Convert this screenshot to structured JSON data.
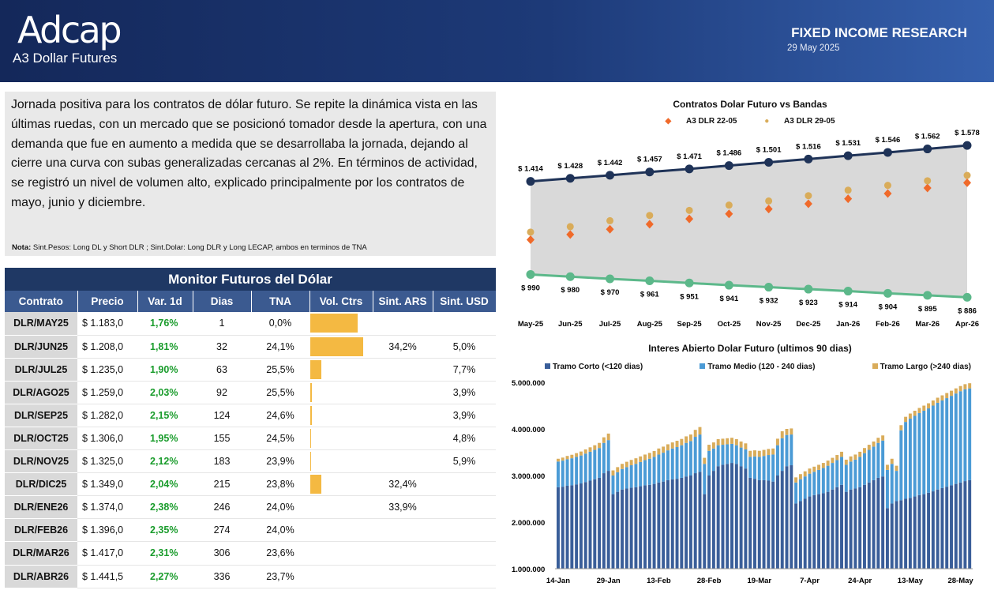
{
  "header": {
    "logo": "Adcap",
    "subtitle": "A3 Dollar Futures",
    "research": "FIXED INCOME RESEARCH",
    "date": "29 May 2025"
  },
  "summary": {
    "text": "Jornada positiva para los contratos de dólar futuro. Se repite la dinámica vista en las últimas ruedas, con un mercado que se posicionó tomador desde la apertura, con una demanda que fue en aumento a medida que se desarrollaba la jornada, dejando al cierre una curva con subas generalizadas cercanas al 2%. En términos de actividad, se registró un nivel de volumen alto, explicado principalmente por los contratos de mayo, junio y diciembre.",
    "nota_label": "Nota:",
    "nota_text": " Sint.Pesos: Long DL y Short DLR ; Sint.Dolar: Long DLR y Long LECAP, ambos en terminos de TNA"
  },
  "monitor": {
    "title": "Monitor Futuros del Dólar",
    "headers": [
      "Contrato",
      "Precio",
      "Var. 1d",
      "Dias",
      "TNA",
      "Vol. Ctrs",
      "Sint. ARS",
      "Sint. USD"
    ],
    "rows": [
      {
        "contrato": "DLR/MAY25",
        "precio": "$ 1.183,0",
        "var": "1,76%",
        "dias": "1",
        "tna": "0,0%",
        "vol": 0.84,
        "sars": "",
        "susd": ""
      },
      {
        "contrato": "DLR/JUN25",
        "precio": "$ 1.208,0",
        "var": "1,81%",
        "dias": "32",
        "tna": "24,1%",
        "vol": 0.93,
        "sars": "34,2%",
        "susd": "5,0%"
      },
      {
        "contrato": "DLR/JUL25",
        "precio": "$ 1.235,0",
        "var": "1,90%",
        "dias": "63",
        "tna": "25,5%",
        "vol": 0.19,
        "sars": "",
        "susd": "7,7%"
      },
      {
        "contrato": "DLR/AGO25",
        "precio": "$ 1.259,0",
        "var": "2,03%",
        "dias": "92",
        "tna": "25,5%",
        "vol": 0.03,
        "sars": "",
        "susd": "3,9%"
      },
      {
        "contrato": "DLR/SEP25",
        "precio": "$ 1.282,0",
        "var": "2,15%",
        "dias": "124",
        "tna": "24,6%",
        "vol": 0.03,
        "sars": "",
        "susd": "3,9%"
      },
      {
        "contrato": "DLR/OCT25",
        "precio": "$ 1.306,0",
        "var": "1,95%",
        "dias": "155",
        "tna": "24,5%",
        "vol": 0.01,
        "sars": "",
        "susd": "4,8%"
      },
      {
        "contrato": "DLR/NOV25",
        "precio": "$ 1.325,0",
        "var": "2,12%",
        "dias": "183",
        "tna": "23,9%",
        "vol": 0.01,
        "sars": "",
        "susd": "5,9%"
      },
      {
        "contrato": "DLR/DIC25",
        "precio": "$ 1.349,0",
        "var": "2,04%",
        "dias": "215",
        "tna": "23,8%",
        "vol": 0.19,
        "sars": "32,4%",
        "susd": ""
      },
      {
        "contrato": "DLR/ENE26",
        "precio": "$ 1.374,0",
        "var": "2,38%",
        "dias": "246",
        "tna": "24,0%",
        "vol": 0,
        "sars": "33,9%",
        "susd": ""
      },
      {
        "contrato": "DLR/FEB26",
        "precio": "$ 1.396,0",
        "var": "2,35%",
        "dias": "274",
        "tna": "24,0%",
        "vol": 0,
        "sars": "",
        "susd": ""
      },
      {
        "contrato": "DLR/MAR26",
        "precio": "$ 1.417,0",
        "var": "2,31%",
        "dias": "306",
        "tna": "23,6%",
        "vol": 0,
        "sars": "",
        "susd": ""
      },
      {
        "contrato": "DLR/ABR26",
        "precio": "$ 1.441,5",
        "var": "2,27%",
        "dias": "336",
        "tna": "23,7%",
        "vol": 0,
        "sars": "",
        "susd": ""
      }
    ]
  },
  "colors": {
    "upper_band": "#1f3358",
    "lower_band": "#5cb88a",
    "band_fill": "#d9d9d9",
    "series_orange": "#f06a2a",
    "series_gold": "#d9ac5a",
    "corto": "#3a5e99",
    "medio": "#4b9bd6",
    "largo": "#d9ac5a",
    "vol_bar": "#f4b942"
  },
  "chart_data": [
    {
      "type": "line",
      "title": "Contratos Dolar Futuro vs Bandas",
      "categories": [
        "May-25",
        "Jun-25",
        "Jul-25",
        "Aug-25",
        "Sep-25",
        "Oct-25",
        "Nov-25",
        "Dec-25",
        "Jan-26",
        "Feb-26",
        "Mar-26",
        "Apr-26"
      ],
      "band_upper": [
        1414,
        1428,
        1442,
        1457,
        1471,
        1486,
        1501,
        1516,
        1531,
        1546,
        1562,
        1578
      ],
      "band_upper_labels": [
        "$ 1.414",
        "$ 1.428",
        "$ 1.442",
        "$ 1.457",
        "$ 1.471",
        "$ 1.486",
        "$ 1.501",
        "$ 1.516",
        "$ 1.531",
        "$ 1.546",
        "$ 1.562",
        "$ 1.578"
      ],
      "band_lower": [
        990,
        980,
        970,
        961,
        951,
        941,
        932,
        923,
        914,
        904,
        895,
        886
      ],
      "band_lower_labels": [
        "$ 990",
        "$ 980",
        "$ 970",
        "$ 961",
        "$ 951",
        "$ 941",
        "$ 932",
        "$ 923",
        "$ 914",
        "$ 904",
        "$ 895",
        "$ 886"
      ],
      "series": [
        {
          "name": "A3 DLR 22-05",
          "values": [
            1148,
            1172,
            1196,
            1219,
            1243,
            1266,
            1288,
            1312,
            1335,
            1359,
            1384,
            1408
          ]
        },
        {
          "name": "A3 DLR 29-05",
          "values": [
            1183,
            1208,
            1235,
            1259,
            1282,
            1306,
            1325,
            1349,
            1374,
            1396,
            1417,
            1441.5
          ]
        }
      ],
      "ylim": [
        880,
        1600
      ],
      "legend": "top"
    },
    {
      "type": "bar",
      "stacked": true,
      "title": "Interes Abierto Dolar Futuro (ultimos 90 dias)",
      "series_names": [
        "Tramo Corto (<120 dias)",
        "Tramo Medio (120 - 240 dias)",
        "Tramo Largo (>240 dias)"
      ],
      "y_ticks": [
        "1.000.000",
        "2.000.000",
        "3.000.000",
        "4.000.000",
        "5.000.000"
      ],
      "ylim": [
        1000000,
        5000000
      ],
      "x_labels": [
        "14-Jan",
        "29-Jan",
        "13-Feb",
        "28-Feb",
        "19-Mar",
        "7-Apr",
        "24-Apr",
        "13-May",
        "28-May"
      ],
      "x_label_index": [
        0,
        11,
        22,
        33,
        44,
        55,
        66,
        77,
        88
      ],
      "corto": [
        2750000,
        2760000,
        2780000,
        2790000,
        2810000,
        2830000,
        2860000,
        2890000,
        2920000,
        2950000,
        3050000,
        3100000,
        2600000,
        2650000,
        2700000,
        2720000,
        2740000,
        2750000,
        2770000,
        2790000,
        2800000,
        2820000,
        2850000,
        2870000,
        2900000,
        2920000,
        2930000,
        2950000,
        2980000,
        3000000,
        3050000,
        3080000,
        2600000,
        3000000,
        3100000,
        3200000,
        3230000,
        3250000,
        3270000,
        3250000,
        3200000,
        3150000,
        2950000,
        2930000,
        2900000,
        2900000,
        2890000,
        2870000,
        3000000,
        3100000,
        3200000,
        3220000,
        2400000,
        2450000,
        2500000,
        2550000,
        2580000,
        2600000,
        2620000,
        2650000,
        2700000,
        2750000,
        2800000,
        2650000,
        2700000,
        2720000,
        2750000,
        2800000,
        2850000,
        2900000,
        2950000,
        2980000,
        2300000,
        2400000,
        2450000,
        2470000,
        2500000,
        2520000,
        2550000,
        2580000,
        2600000,
        2630000,
        2660000,
        2700000,
        2730000,
        2760000,
        2790000,
        2820000,
        2850000,
        2880000,
        2900000
      ],
      "medio": [
        550000,
        560000,
        570000,
        580000,
        590000,
        600000,
        610000,
        620000,
        630000,
        640000,
        650000,
        660000,
        400000,
        420000,
        440000,
        460000,
        480000,
        500000,
        520000,
        540000,
        560000,
        580000,
        600000,
        620000,
        640000,
        660000,
        680000,
        700000,
        720000,
        740000,
        780000,
        800000,
        650000,
        530000,
        480000,
        450000,
        430000,
        420000,
        410000,
        400000,
        400000,
        410000,
        450000,
        480000,
        500000,
        520000,
        550000,
        580000,
        650000,
        700000,
        670000,
        660000,
        450000,
        470000,
        480000,
        490000,
        500000,
        520000,
        540000,
        560000,
        570000,
        580000,
        600000,
        580000,
        600000,
        620000,
        650000,
        680000,
        700000,
        720000,
        750000,
        770000,
        820000,
        850000,
        650000,
        1500000,
        1650000,
        1700000,
        1730000,
        1760000,
        1790000,
        1810000,
        1840000,
        1860000,
        1880000,
        1900000,
        1920000,
        1940000,
        1960000,
        1970000,
        1970000
      ],
      "largo": [
        60000,
        65000,
        70000,
        75000,
        80000,
        85000,
        90000,
        95000,
        100000,
        110000,
        120000,
        140000,
        110000,
        110000,
        110000,
        115000,
        115000,
        120000,
        120000,
        120000,
        125000,
        125000,
        130000,
        130000,
        130000,
        130000,
        135000,
        135000,
        140000,
        140000,
        150000,
        160000,
        130000,
        130000,
        130000,
        130000,
        130000,
        130000,
        130000,
        130000,
        130000,
        130000,
        130000,
        130000,
        130000,
        130000,
        130000,
        130000,
        140000,
        150000,
        130000,
        130000,
        110000,
        110000,
        110000,
        110000,
        110000,
        110000,
        110000,
        110000,
        110000,
        110000,
        110000,
        110000,
        110000,
        110000,
        110000,
        110000,
        110000,
        110000,
        110000,
        110000,
        110000,
        110000,
        110000,
        110000,
        110000,
        110000,
        110000,
        110000,
        110000,
        110000,
        110000,
        110000,
        110000,
        110000,
        110000,
        110000,
        110000,
        110000,
        110000
      ],
      "legend": "top"
    }
  ]
}
